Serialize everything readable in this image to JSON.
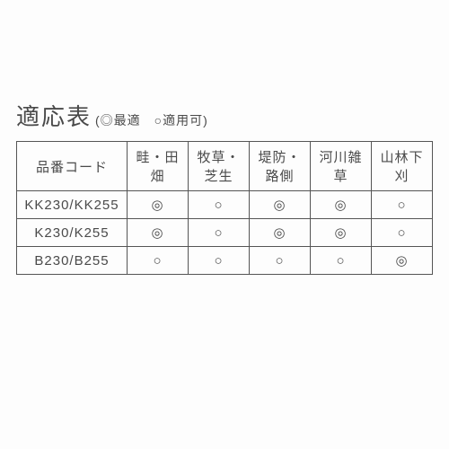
{
  "title": "適応表",
  "legend": "(◎最適　○適用可)",
  "columns": [
    "品番コード",
    "畦・田畑",
    "牧草・芝生",
    "堤防・路側",
    "河川雑草",
    "山林下刈"
  ],
  "rows": [
    {
      "code": "KK230/KK255",
      "cells": [
        "◎",
        "○",
        "◎",
        "◎",
        "○"
      ]
    },
    {
      "code": "K230/K255",
      "cells": [
        "◎",
        "○",
        "◎",
        "◎",
        "○"
      ]
    },
    {
      "code": "B230/B255",
      "cells": [
        "○",
        "○",
        "○",
        "○",
        "◎"
      ]
    }
  ],
  "colors": {
    "text": "#4a4a4a",
    "border": "#555555",
    "background": "#fdfdfd"
  }
}
